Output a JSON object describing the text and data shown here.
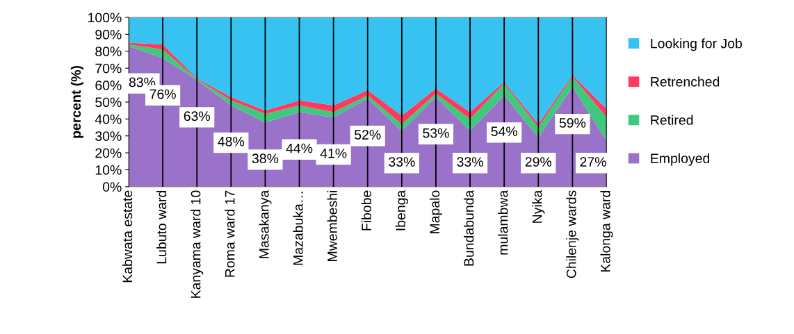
{
  "chart_data": {
    "type": "area",
    "stacked": true,
    "ylabel": "percent (%)",
    "categories": [
      "Kabwata estate",
      "Lubuto ward",
      "Kanyama ward 10",
      "Roma ward 17",
      "Masakanya",
      "Mazabuka…",
      "Mwembeshi",
      "Fibobe",
      "Ibenga",
      "Mapalo",
      "Bundabunda",
      "mulambwa",
      "Nyika",
      "Chilenje wards",
      "Kalonga ward"
    ],
    "series": [
      {
        "name": "Employed",
        "color": "#9b72c9",
        "values": [
          83,
          76,
          63,
          48,
          38,
          44,
          41,
          52,
          33,
          53,
          33,
          54,
          29,
          59,
          27
        ],
        "value_labels": [
          "83%",
          "76%",
          "63%",
          "48%",
          "38%",
          "44%",
          "41%",
          "52%",
          "33%",
          "53%",
          "33%",
          "54%",
          "29%",
          "59%",
          "27%"
        ]
      },
      {
        "name": "Retired",
        "color": "#3fc97f",
        "values": [
          1,
          5,
          0.5,
          3,
          5,
          4,
          3,
          2,
          4,
          2,
          7,
          7,
          6,
          6,
          14
        ]
      },
      {
        "name": "Retrenched",
        "color": "#ff3a5c",
        "values": [
          1,
          3,
          0.5,
          2,
          2,
          3,
          4,
          3,
          5,
          3,
          4,
          1,
          2,
          1,
          5
        ]
      },
      {
        "name": "Looking for Job",
        "color": "#37c2f2",
        "values": [
          15,
          16,
          36,
          47,
          55,
          49,
          52,
          43,
          58,
          42,
          56,
          38,
          63,
          34,
          54
        ]
      }
    ],
    "ylim": [
      0,
      100
    ],
    "yticks": [
      {
        "value": 0,
        "label": "0%"
      },
      {
        "value": 10,
        "label": "10%"
      },
      {
        "value": 20,
        "label": "20%"
      },
      {
        "value": 30,
        "label": "30%"
      },
      {
        "value": 40,
        "label": "40%"
      },
      {
        "value": 50,
        "label": "50%"
      },
      {
        "value": 60,
        "label": "60%"
      },
      {
        "value": 70,
        "label": "70%"
      },
      {
        "value": 80,
        "label": "80%"
      },
      {
        "value": 90,
        "label": "90%"
      },
      {
        "value": 100,
        "label": "100%"
      }
    ],
    "grid": "x",
    "legend": "right"
  }
}
